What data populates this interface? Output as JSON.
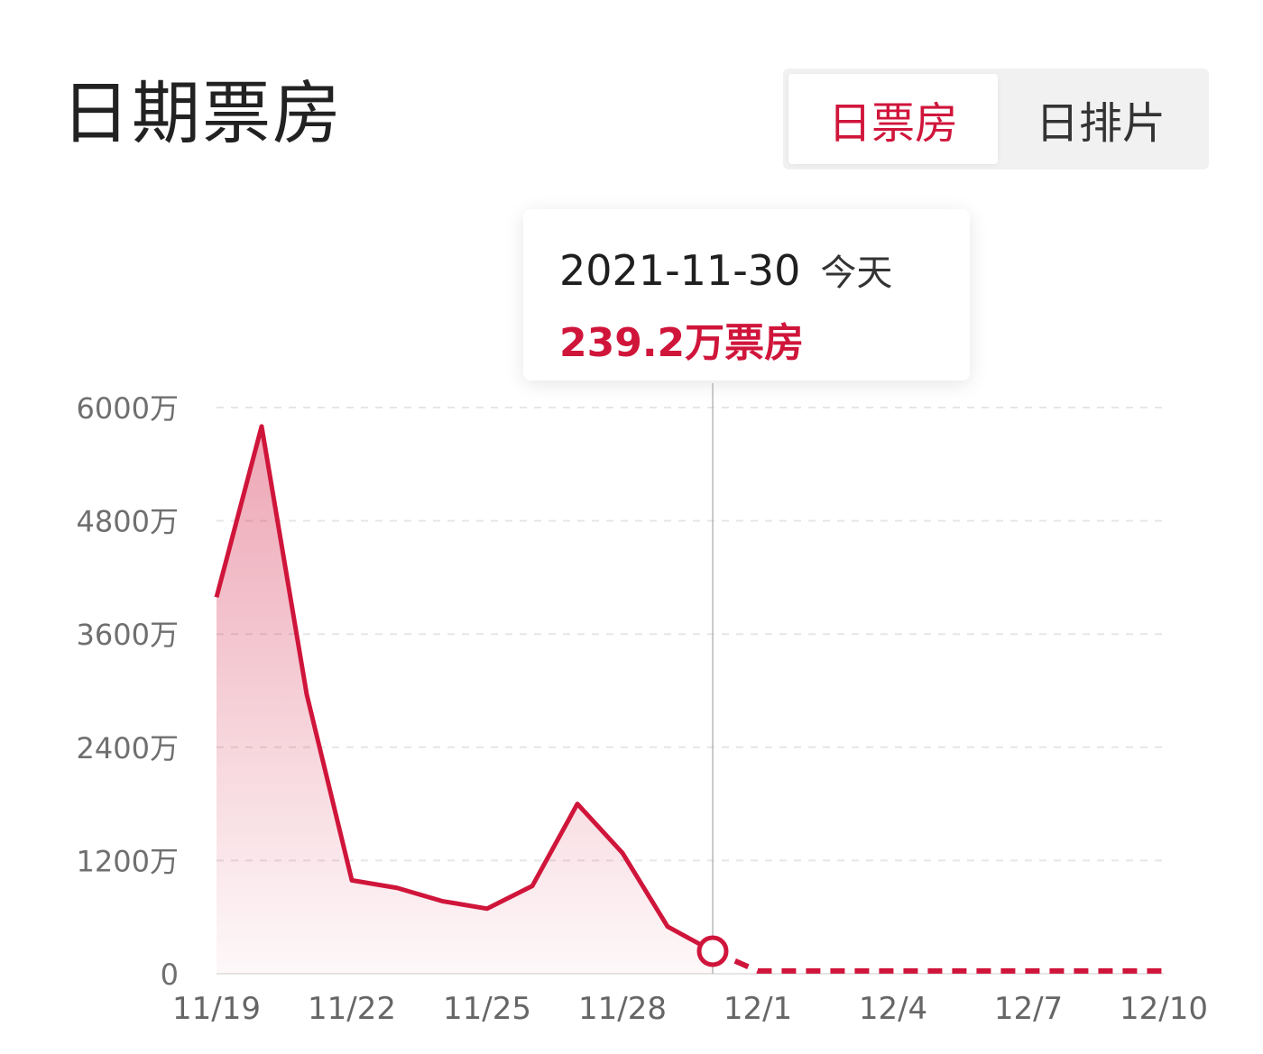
{
  "header": {
    "title": "日期票房"
  },
  "tabs": [
    {
      "label": "日票房",
      "active": true
    },
    {
      "label": "日排片",
      "active": false
    }
  ],
  "tooltip": {
    "date": "2021-11-30",
    "today_label": "今天",
    "value_text": "239.2万票房"
  },
  "colors": {
    "accent": "#d0153b",
    "axis_text": "#6f6f6f",
    "grid": "#e6e6e6",
    "crosshair": "#b8b8b8"
  },
  "chart_data": {
    "type": "line",
    "y_ticks": [
      "0",
      "1200万",
      "2400万",
      "3600万",
      "4800万",
      "6000万"
    ],
    "ylim": [
      0,
      6000
    ],
    "x_ticks": [
      "11/19",
      "11/22",
      "11/25",
      "11/28",
      "12/1",
      "12/4",
      "12/7",
      "12/10"
    ],
    "grid": true,
    "series": [
      {
        "x": [
          "11/19",
          "11/20",
          "11/21",
          "11/22",
          "11/23",
          "11/24",
          "11/25",
          "11/26",
          "11/27",
          "11/28",
          "11/29",
          "11/30"
        ],
        "values": [
          3990,
          5800,
          2960,
          990,
          910,
          770,
          690,
          930,
          1800,
          1280,
          500,
          239.2
        ],
        "style": "solid"
      },
      {
        "x": [
          "11/30",
          "12/1",
          "12/2",
          "12/3",
          "12/4",
          "12/5",
          "12/6",
          "12/7",
          "12/8",
          "12/9",
          "12/10"
        ],
        "values": [
          239.2,
          30,
          30,
          30,
          30,
          30,
          30,
          30,
          30,
          30,
          30
        ],
        "style": "dashed"
      }
    ],
    "highlight": {
      "x": "11/30",
      "value": 239.2
    }
  }
}
